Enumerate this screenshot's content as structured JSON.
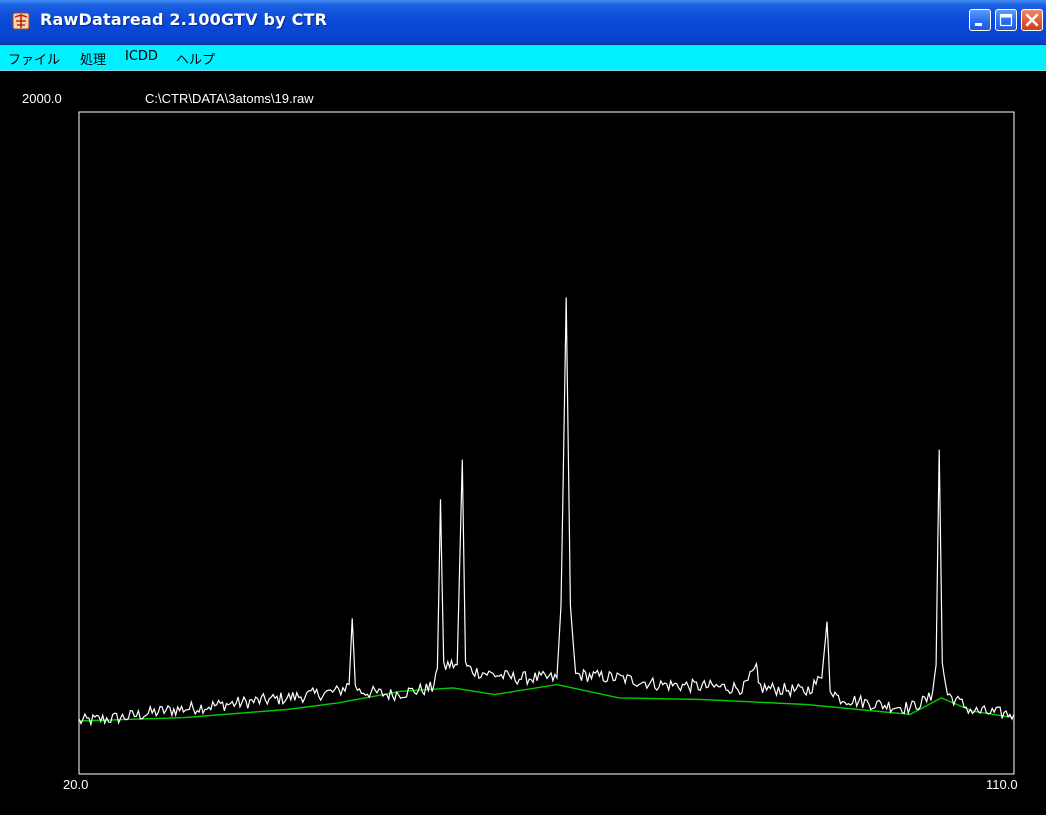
{
  "window": {
    "title": "RawDataread 2.100GTV by CTR",
    "controls": [
      "minimize-icon",
      "maximize-icon",
      "close-icon"
    ]
  },
  "menu": {
    "items": [
      {
        "label": "ファイル"
      },
      {
        "label": "処理"
      },
      {
        "label": "ICDD"
      },
      {
        "label": "ヘルプ"
      }
    ]
  },
  "plot": {
    "file_path": "C:\\CTR\\DATA\\3atoms\\19.raw",
    "y_max_label": "2000.0",
    "x_min_label": "20.0",
    "x_max_label": "110.0"
  },
  "chart_data": {
    "type": "line",
    "title": "C:\\CTR\\DATA\\3atoms\\19.raw",
    "xlabel": "",
    "ylabel": "",
    "xlim": [
      20.0,
      110.0
    ],
    "ylim": [
      0,
      2000.0
    ],
    "grid": false,
    "colors": {
      "intensity": "#ffffff",
      "background": "#00cc00"
    },
    "series": [
      {
        "key": "intensity",
        "x": [
          20.0,
          24.0,
          28.0,
          31.0,
          34.0,
          37.0,
          40.0,
          45.0,
          46.0,
          46.3,
          46.6,
          47.0,
          50.0,
          54.0,
          54.5,
          54.8,
          55.1,
          55.5,
          56.4,
          56.9,
          57.2,
          57.5,
          58.1,
          62.0,
          66.0,
          66.4,
          66.9,
          67.3,
          67.8,
          72.0,
          76.0,
          84.0,
          85.2,
          85.4,
          85.8,
          90.0,
          91.5,
          92.0,
          92.3,
          92.6,
          93.1,
          97.0,
          100.0,
          102.0,
          102.5,
          102.8,
          103.1,
          103.6,
          106.0,
          110.0
        ],
        "y": [
          160,
          170,
          190,
          200,
          210,
          220,
          230,
          250,
          270,
          470,
          270,
          250,
          240,
          260,
          320,
          830,
          320,
          330,
          330,
          950,
          330,
          320,
          310,
          290,
          290,
          510,
          1440,
          510,
          300,
          290,
          270,
          260,
          320,
          270,
          260,
          250,
          290,
          460,
          260,
          250,
          230,
          210,
          200,
          230,
          330,
          980,
          330,
          240,
          190,
          180
        ]
      },
      {
        "key": "background",
        "x": [
          20.0,
          30.0,
          40.0,
          45.0,
          51.0,
          56.0,
          60.0,
          66.0,
          72.0,
          80.0,
          90.0,
          100.0,
          103.0,
          106.0,
          110.0
        ],
        "y": [
          160,
          170,
          195,
          215,
          250,
          260,
          240,
          270,
          230,
          225,
          210,
          180,
          230,
          190,
          170
        ]
      }
    ]
  }
}
